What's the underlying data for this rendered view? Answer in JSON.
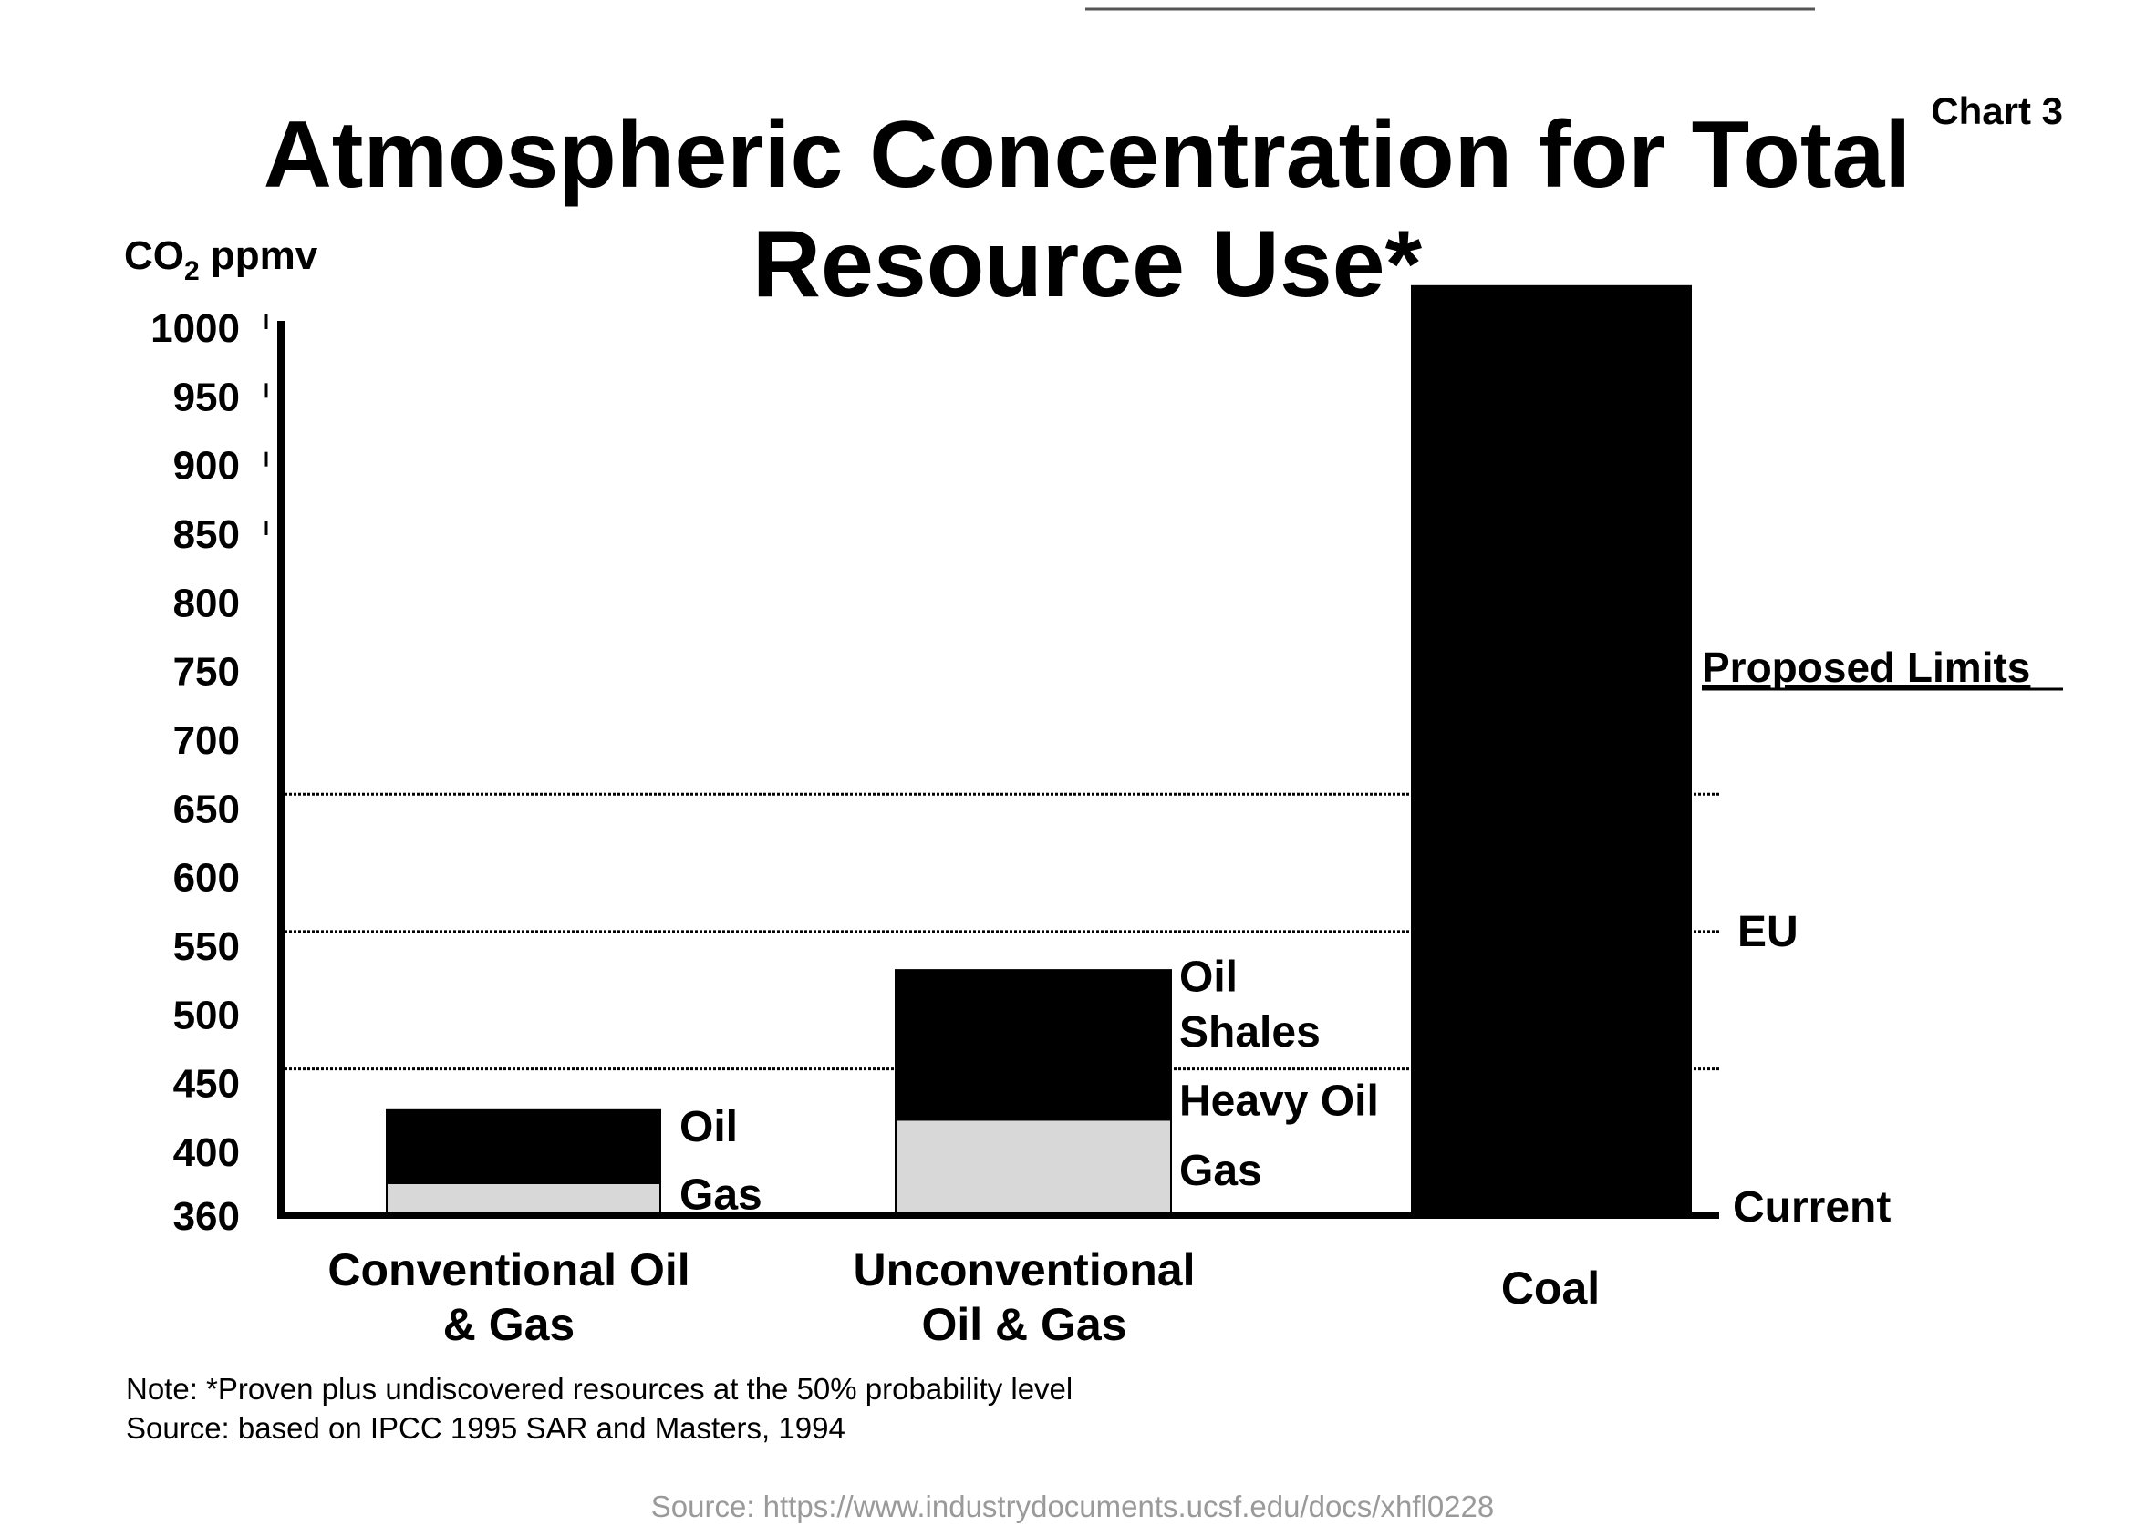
{
  "chart_label": "Chart 3",
  "title_line1": "Atmospheric Concentration for Total",
  "title_line2": "Resource Use*",
  "note": "Note: *Proven plus undiscovered resources at the 50% probability level",
  "source_text": "Source: based on IPCC 1995 SAR and Masters, 1994",
  "source_url": "Source: https://www.industrydocuments.ucsf.edu/docs/xhfl0228",
  "colors": {
    "bar_dark": "#000000",
    "bar_gas": "#d8d8d8"
  },
  "chart_data": {
    "type": "bar",
    "stacked": true,
    "title": "Atmospheric Concentration for Total Resource Use*",
    "ylabel_main": "CO",
    "ylabel_sub": "2",
    "ylabel_tail": " ppmv",
    "ylim": [
      360,
      1000
    ],
    "yticks": [
      "1000",
      "950",
      "900",
      "850",
      "800",
      "750",
      "700",
      "650",
      "600",
      "550",
      "500",
      "450",
      "400",
      "360"
    ],
    "categories": [
      {
        "line1": "Conventional Oil",
        "line2": "& Gas"
      },
      {
        "line1": "Unconventional",
        "line2": "Oil & Gas"
      },
      {
        "line1": "Coal",
        "line2": ""
      }
    ],
    "stacks": [
      [
        {
          "label": "Gas",
          "from": 360,
          "to": 380,
          "color": "gas"
        },
        {
          "label": "Oil",
          "from": 380,
          "to": 430,
          "color": "dark"
        }
      ],
      [
        {
          "label": "Gas",
          "from": 360,
          "to": 423,
          "color": "gas"
        },
        {
          "label": "Heavy Oil",
          "from": 423,
          "to": 423,
          "color": "dark"
        },
        {
          "label": "Oil Shales",
          "from": 423,
          "to": 532,
          "color": "dark"
        }
      ],
      [
        {
          "label": "",
          "from": 360,
          "to": 1030,
          "color": "dark"
        }
      ]
    ],
    "segment_labels": [
      [
        {
          "text": "Oil",
          "at": 418
        },
        {
          "text": "Gas",
          "at": 373
        }
      ],
      [
        {
          "text": "Oil",
          "at": 527
        },
        {
          "text": "Shales",
          "at": 487
        },
        {
          "text": "Heavy Oil",
          "at": 437
        },
        {
          "text": "Gas",
          "at": 388
        }
      ],
      []
    ],
    "reference_lines": [
      {
        "value": 560,
        "label": "EU"
      },
      {
        "value": 460,
        "label": ""
      },
      {
        "value": 660,
        "label": ""
      }
    ],
    "reference_title": "Proposed Limits",
    "baseline_label": "Current"
  }
}
